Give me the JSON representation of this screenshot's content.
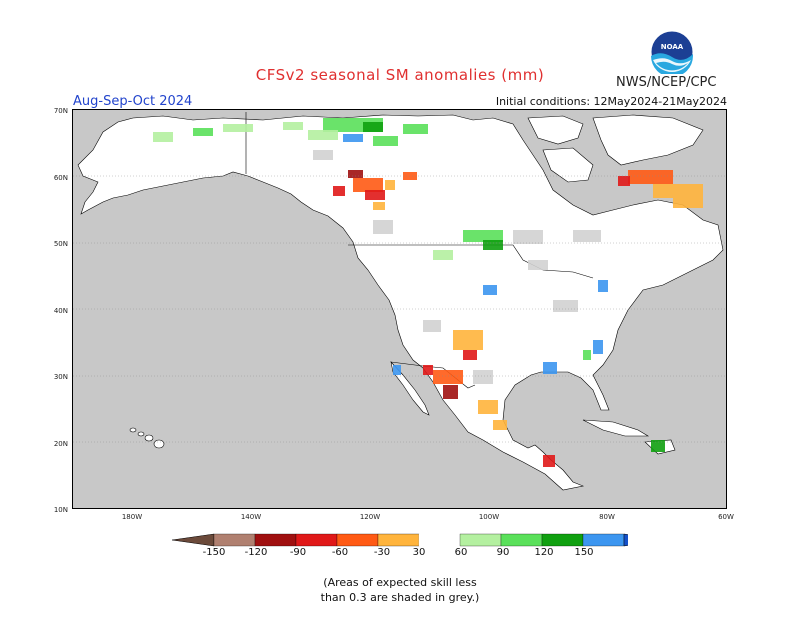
{
  "header": {
    "title": "CFSv2 seasonal SM anomalies (mm)",
    "agency": "NWS/NCEP/CPC",
    "season": "Aug-Sep-Oct 2024",
    "initial_conditions": "Initial conditions: 12May2024-21May2024",
    "logo_text": "NOAA"
  },
  "axes": {
    "lat_labels": [
      "70N",
      "60N",
      "50N",
      "40N",
      "30N",
      "20N",
      "10N"
    ],
    "lon_labels": [
      "180W",
      "140W",
      "120W",
      "100W",
      "80W",
      "60W"
    ]
  },
  "colorbar": {
    "labels": [
      "-150",
      "-120",
      "-90",
      "-60",
      "-30",
      "30",
      "60",
      "90",
      "120",
      "150"
    ],
    "colors": [
      "#6b4a3a",
      "#b08070",
      "#a01010",
      "#e01818",
      "#ff5a14",
      "#ffb43c",
      "#ffffff",
      "#b4f0a0",
      "#5ae05a",
      "#10a010",
      "#3c96f0",
      "#1450c8"
    ]
  },
  "palette": {
    "land": "#ffffff",
    "ocean": "#c8c8c8",
    "low_skill": "#d2d2d2",
    "title_red": "#e03030",
    "season_blue": "#2244cc"
  },
  "footnote": {
    "line1": "(Areas of expected skill less",
    "line2": "than 0.3 are shaded in grey.)"
  }
}
